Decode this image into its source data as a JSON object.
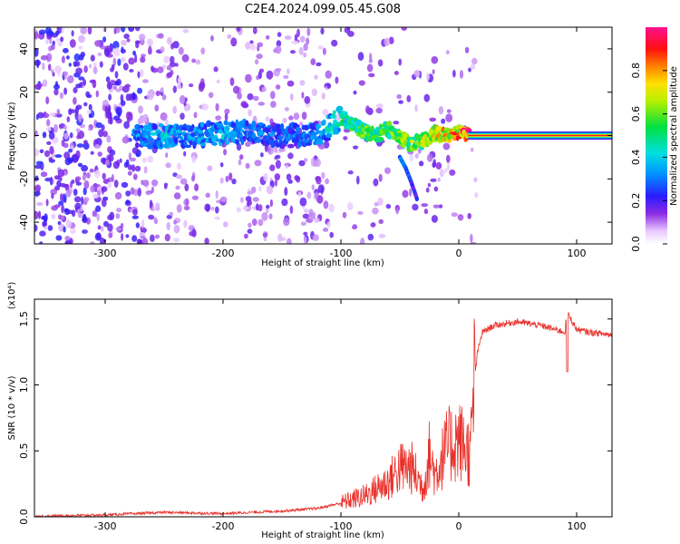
{
  "figure": {
    "title": "C2E4.2024.099.05.45.G08"
  },
  "chart_data": [
    {
      "type": "heatmap",
      "title": "C2E4.2024.099.05.45.G08",
      "xlabel": "Height of straight line (km)",
      "ylabel": "Frequency (Hz)",
      "xlim": [
        -360,
        130
      ],
      "ylim": [
        -50,
        50
      ],
      "xticks": [
        "-300",
        "-200",
        "-100",
        "0",
        "100"
      ],
      "xtick_values": [
        -300,
        -200,
        -100,
        0,
        100
      ],
      "yticks": [
        "-40",
        "-20",
        "0",
        "20",
        "40"
      ],
      "ytick_values": [
        -40,
        -20,
        0,
        20,
        40
      ],
      "colorbar": {
        "label": "Normalized spectral amplitude",
        "ticks": [
          "0.0",
          "0.2",
          "0.4",
          "0.6",
          "0.8"
        ],
        "tick_values": [
          0,
          0.2,
          0.4,
          0.6,
          0.8
        ],
        "range": [
          0,
          1
        ],
        "colormap": "rainbow (white-violet-blue-cyan-green-yellow-orange-red-magenta)"
      },
      "ridge": {
        "description": "main spectral line",
        "points": [
          [
            -270,
            0,
            0.35
          ],
          [
            -250,
            0,
            0.4
          ],
          [
            -230,
            0,
            0.35
          ],
          [
            -200,
            1,
            0.4
          ],
          [
            -180,
            2,
            0.35
          ],
          [
            -150,
            0,
            0.3
          ],
          [
            -120,
            0,
            0.35
          ],
          [
            -100,
            8,
            0.5
          ],
          [
            -90,
            5,
            0.55
          ],
          [
            -80,
            2,
            0.6
          ],
          [
            -70,
            0,
            0.55
          ],
          [
            -60,
            3,
            0.6
          ],
          [
            -50,
            -1,
            0.6
          ],
          [
            -40,
            -4,
            0.65
          ],
          [
            -30,
            -2,
            0.7
          ],
          [
            -20,
            1,
            0.75
          ],
          [
            -10,
            0,
            0.8
          ],
          [
            0,
            1,
            0.85
          ],
          [
            10,
            0,
            1.0
          ],
          [
            130,
            0,
            1.0
          ]
        ],
        "branch": [
          [
            -50,
            -10
          ],
          [
            -45,
            -15
          ],
          [
            -40,
            -22
          ],
          [
            -35,
            -30
          ]
        ]
      }
    },
    {
      "type": "line",
      "xlabel": "Height of straight line (km)",
      "ylabel": "SNR (10 * v/v)",
      "yscale_label": "(x10⁴)",
      "xlim": [
        -360,
        130
      ],
      "ylim": [
        0,
        1.65
      ],
      "xticks": [
        "-300",
        "-200",
        "-100",
        "0",
        "100"
      ],
      "xtick_values": [
        -300,
        -200,
        -100,
        0,
        100
      ],
      "yticks": [
        "0.0",
        "0.5",
        "1.0",
        "1.5"
      ],
      "ytick_values": [
        0,
        0.5,
        1.0,
        1.5
      ],
      "color": "#e8302a",
      "series": [
        {
          "x": [
            -360,
            -300,
            -250,
            -200,
            -150,
            -120,
            -100,
            -80,
            -60,
            -50,
            -40,
            -30,
            -25,
            -20,
            -10,
            0,
            5,
            10,
            14,
            16,
            20,
            30,
            50,
            70,
            90,
            92,
            100,
            110,
            130
          ],
          "y": [
            0.0,
            0.01,
            0.03,
            0.02,
            0.04,
            0.06,
            0.1,
            0.15,
            0.25,
            0.35,
            0.35,
            0.2,
            0.45,
            0.3,
            0.5,
            0.55,
            0.5,
            0.45,
            1.1,
            1.25,
            1.4,
            1.45,
            1.48,
            1.45,
            1.4,
            1.55,
            1.42,
            1.4,
            1.38
          ]
        }
      ]
    }
  ]
}
